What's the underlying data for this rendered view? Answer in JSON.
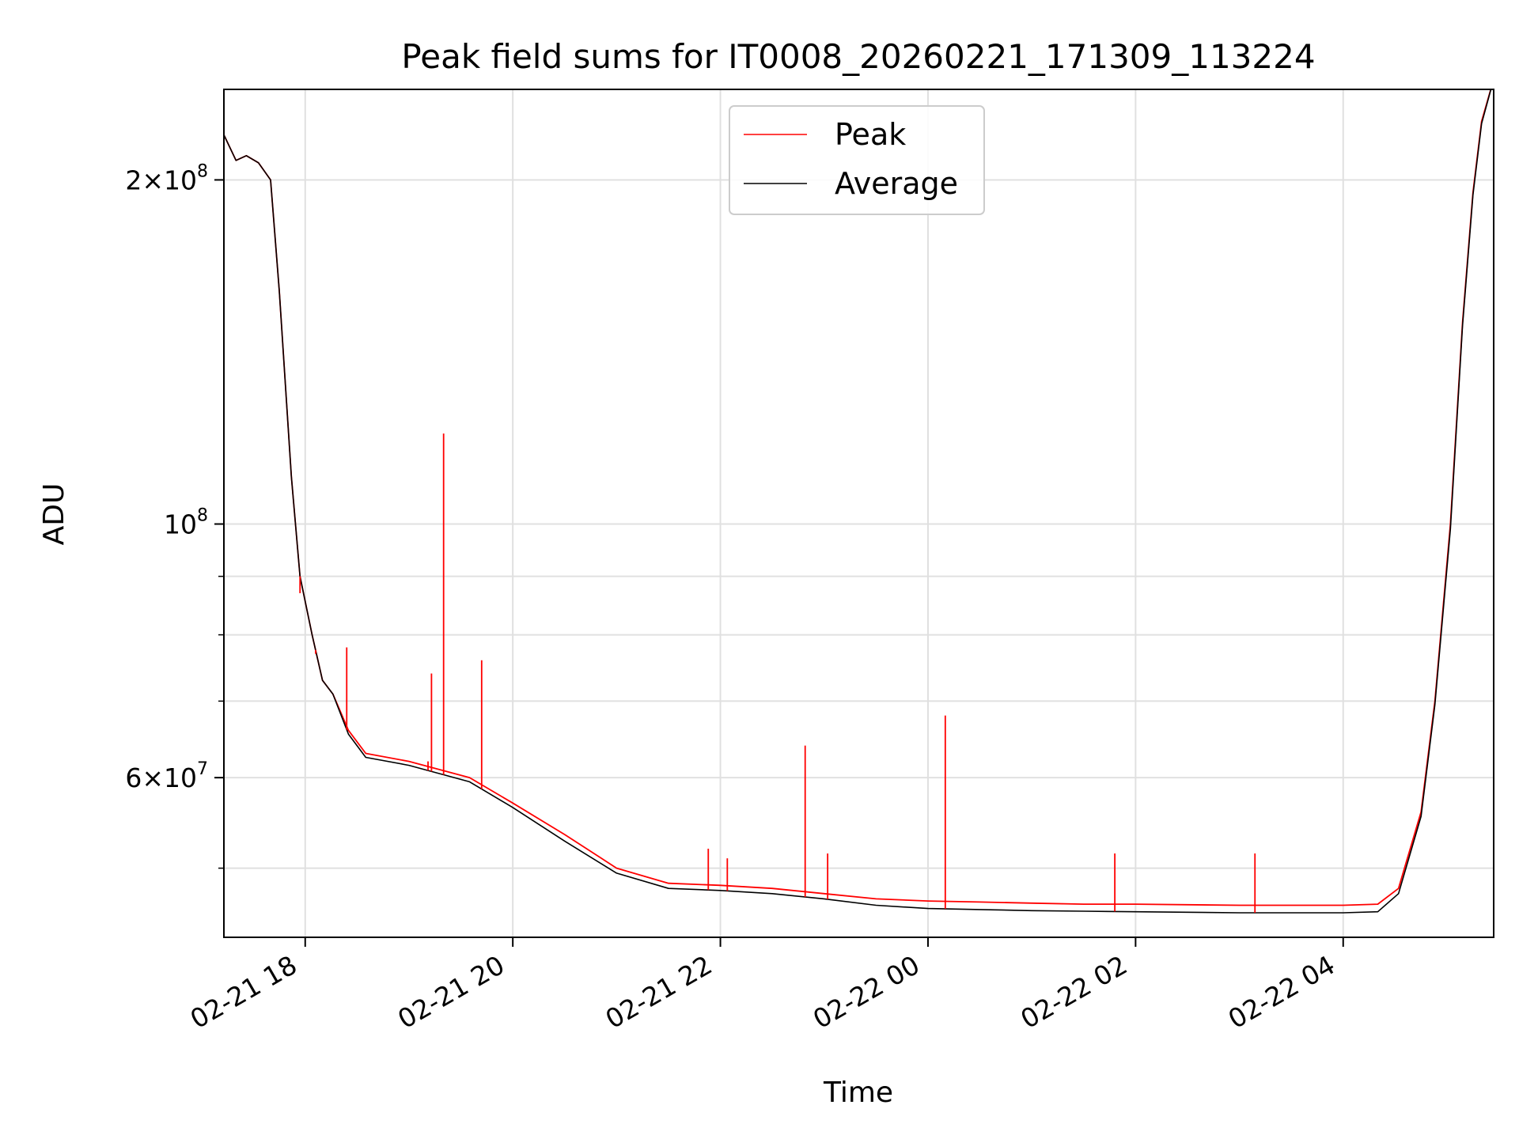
{
  "chart_data": {
    "type": "line",
    "title": "Peak field sums for IT0008_20260221_171309_113224",
    "xlabel": "Time",
    "ylabel": "ADU",
    "x_unit": "hours",
    "xlim": [
      "02-21 17:13",
      "02-22 05:27"
    ],
    "ylim": [
      43500000,
      240000000
    ],
    "yscale": "log",
    "grid": true,
    "legend_position": "top-center",
    "x_ticks": [
      {
        "value": "02-21 18:00",
        "label": "02-21 18"
      },
      {
        "value": "02-21 20:00",
        "label": "02-21 20"
      },
      {
        "value": "02-21 22:00",
        "label": "02-21 22"
      },
      {
        "value": "02-22 00:00",
        "label": "02-22 00"
      },
      {
        "value": "02-22 02:00",
        "label": "02-22 02"
      },
      {
        "value": "02-22 04:00",
        "label": "02-22 04"
      }
    ],
    "y_major_ticks": [
      {
        "value": 200000000,
        "mantissa": "2",
        "base": "10",
        "exp": "8"
      },
      {
        "value": 100000000,
        "mantissa": "",
        "base": "10",
        "exp": "8"
      },
      {
        "value": 60000000,
        "mantissa": "6",
        "base": "10",
        "exp": "7"
      }
    ],
    "y_minor_ticks": [
      50000000,
      70000000,
      80000000,
      90000000
    ],
    "series": [
      {
        "name": "Peak",
        "color": "#ff0000",
        "x": [
          "02-21 17:13",
          "02-21 17:20",
          "02-21 17:26",
          "02-21 17:33",
          "02-21 17:40",
          "02-21 17:45",
          "02-21 17:52",
          "02-21 17:57",
          "02-21 18:04",
          "02-21 18:10",
          "02-21 18:16",
          "02-21 18:25",
          "02-21 18:35",
          "02-21 19:00",
          "02-21 19:35",
          "02-21 20:00",
          "02-21 20:30",
          "02-21 21:00",
          "02-21 21:30",
          "02-21 22:00",
          "02-21 22:30",
          "02-21 23:00",
          "02-21 23:30",
          "02-22 00:00",
          "02-22 00:30",
          "02-22 01:00",
          "02-22 01:30",
          "02-22 02:00",
          "02-22 03:00",
          "02-22 04:00",
          "02-22 04:20",
          "02-22 04:32",
          "02-22 04:45",
          "02-22 04:53",
          "02-22 05:02",
          "02-22 05:09",
          "02-22 05:15",
          "02-22 05:20",
          "02-22 05:27"
        ],
        "values": [
          219000000,
          208000000,
          210000000,
          207000000,
          200000000,
          160000000,
          110000000,
          90000000,
          80000000,
          73000000,
          71000000,
          66000000,
          63000000,
          62000000,
          60000000,
          57000000,
          53500000,
          50000000,
          48500000,
          48300000,
          48000000,
          47500000,
          47000000,
          46800000,
          46700000,
          46600000,
          46500000,
          46500000,
          46400000,
          46400000,
          46500000,
          48000000,
          56000000,
          70000000,
          100000000,
          150000000,
          195000000,
          225000000,
          245000000
        ],
        "spikes": [
          {
            "x": "02-21 17:57",
            "value": 87000000
          },
          {
            "x": "02-21 18:06",
            "value": 77000000
          },
          {
            "x": "02-21 18:24",
            "value": 78000000
          },
          {
            "x": "02-21 19:11",
            "value": 62000000
          },
          {
            "x": "02-21 19:13",
            "value": 74000000
          },
          {
            "x": "02-21 19:20",
            "value": 120000000
          },
          {
            "x": "02-21 19:42",
            "value": 76000000
          },
          {
            "x": "02-21 21:53",
            "value": 52000000
          },
          {
            "x": "02-21 22:04",
            "value": 51000000
          },
          {
            "x": "02-21 22:49",
            "value": 64000000
          },
          {
            "x": "02-21 23:02",
            "value": 51500000
          },
          {
            "x": "02-22 00:10",
            "value": 68000000
          },
          {
            "x": "02-22 01:48",
            "value": 51500000
          },
          {
            "x": "02-22 03:09",
            "value": 51500000
          }
        ]
      },
      {
        "name": "Average",
        "color": "#000000",
        "x": [
          "02-21 17:13",
          "02-21 17:20",
          "02-21 17:26",
          "02-21 17:33",
          "02-21 17:40",
          "02-21 17:45",
          "02-21 17:52",
          "02-21 17:57",
          "02-21 18:04",
          "02-21 18:10",
          "02-21 18:16",
          "02-21 18:25",
          "02-21 18:35",
          "02-21 19:00",
          "02-21 19:35",
          "02-21 20:00",
          "02-21 20:30",
          "02-21 21:00",
          "02-21 21:30",
          "02-21 22:00",
          "02-21 22:30",
          "02-21 23:00",
          "02-21 23:30",
          "02-22 00:00",
          "02-22 00:30",
          "02-22 01:00",
          "02-22 01:30",
          "02-22 02:00",
          "02-22 03:00",
          "02-22 04:00",
          "02-22 04:20",
          "02-22 04:32",
          "02-22 04:45",
          "02-22 04:53",
          "02-22 05:02",
          "02-22 05:09",
          "02-22 05:15",
          "02-22 05:20",
          "02-22 05:27"
        ],
        "values": [
          219000000,
          208000000,
          210000000,
          207000000,
          200000000,
          160000000,
          110000000,
          90000000,
          80000000,
          73000000,
          71000000,
          65500000,
          62500000,
          61500000,
          59500000,
          56500000,
          52800000,
          49500000,
          48000000,
          47800000,
          47500000,
          47000000,
          46400000,
          46100000,
          46000000,
          45900000,
          45850000,
          45800000,
          45700000,
          45700000,
          45800000,
          47500000,
          55500000,
          69500000,
          99000000,
          149000000,
          194000000,
          224000000,
          245000000
        ]
      }
    ]
  }
}
